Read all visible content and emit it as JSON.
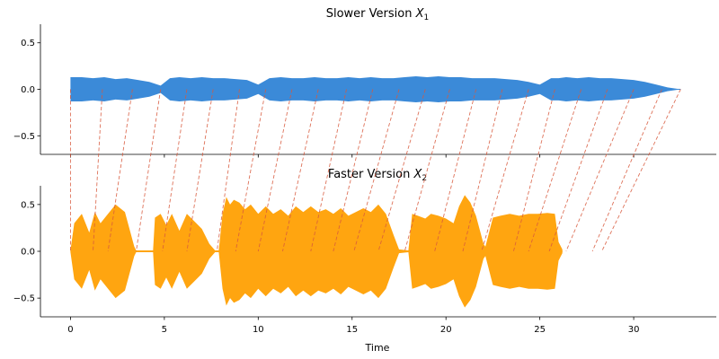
{
  "chart_data": [
    {
      "type": "line",
      "title_main": "Slower Version ",
      "title_sym": "X",
      "title_sub": "1",
      "xlabel": "",
      "ylabel": "",
      "xlim": [
        -1.6,
        34.4
      ],
      "ylim": [
        -0.7,
        0.7
      ],
      "yticks": [
        0.5,
        0.0,
        -0.5
      ],
      "ytick_labels": [
        "0.5",
        "0.0",
        "−0.5"
      ],
      "grid": false,
      "color": "#3b8ad8",
      "series": [
        {
          "x": [
            0.0,
            0.6,
            1.2,
            1.8,
            2.4,
            3.0,
            3.6,
            4.2,
            4.8,
            5.3,
            5.8,
            6.4,
            7.0,
            7.6,
            8.2,
            8.8,
            9.4,
            10.0,
            10.6,
            11.2,
            11.8,
            12.4,
            13.0,
            13.6,
            14.2,
            14.8,
            15.4,
            16.0,
            16.6,
            17.2,
            17.8,
            18.4,
            19.0,
            19.6,
            20.2,
            20.8,
            21.4,
            22.0,
            22.6,
            23.2,
            23.8,
            24.4,
            25.0,
            25.6,
            26.0,
            26.4,
            27.0,
            27.6,
            28.2,
            28.8,
            29.4,
            30.0,
            30.6,
            31.2,
            31.8,
            32.5
          ],
          "y": [
            0.13,
            0.13,
            0.12,
            0.13,
            0.11,
            0.12,
            0.1,
            0.08,
            0.04,
            0.12,
            0.13,
            0.12,
            0.13,
            0.12,
            0.12,
            0.11,
            0.1,
            0.05,
            0.12,
            0.13,
            0.12,
            0.12,
            0.13,
            0.12,
            0.12,
            0.13,
            0.12,
            0.13,
            0.12,
            0.12,
            0.13,
            0.14,
            0.13,
            0.14,
            0.13,
            0.13,
            0.12,
            0.12,
            0.12,
            0.11,
            0.1,
            0.08,
            0.05,
            0.12,
            0.12,
            0.13,
            0.12,
            0.13,
            0.12,
            0.12,
            0.11,
            0.1,
            0.08,
            0.05,
            0.02,
            0.0
          ]
        }
      ]
    },
    {
      "type": "line",
      "title_main": "Faster Version ",
      "title_sym": "X",
      "title_sub": "2",
      "xlabel": "Time",
      "ylabel": "",
      "xlim": [
        -1.6,
        34.4
      ],
      "ylim": [
        -0.7,
        0.7
      ],
      "xticks": [
        0,
        5,
        10,
        15,
        20,
        25,
        30
      ],
      "xtick_labels": [
        "0",
        "5",
        "10",
        "15",
        "20",
        "25",
        "30"
      ],
      "yticks": [
        0.5,
        0.0,
        -0.5
      ],
      "ytick_labels": [
        "0.5",
        "0.0",
        "−0.5"
      ],
      "grid": false,
      "color": "#ffa510",
      "series": [
        {
          "x": [
            0.0,
            0.2,
            0.6,
            1.0,
            1.3,
            1.6,
            2.0,
            2.4,
            2.9,
            3.4,
            3.5,
            4.4,
            4.5,
            4.8,
            5.1,
            5.4,
            5.8,
            6.2,
            6.6,
            7.0,
            7.4,
            7.7,
            7.9,
            8.1,
            8.3,
            8.5,
            8.7,
            9.0,
            9.3,
            9.6,
            10.0,
            10.4,
            10.8,
            11.2,
            11.6,
            12.0,
            12.4,
            12.8,
            13.2,
            13.6,
            14.0,
            14.4,
            14.8,
            15.2,
            15.6,
            16.0,
            16.4,
            16.8,
            17.2,
            17.5,
            18.0,
            18.2,
            18.5,
            18.9,
            19.2,
            19.6,
            20.0,
            20.4,
            20.7,
            21.0,
            21.3,
            21.6,
            22.0,
            22.1,
            22.5,
            22.9,
            23.4,
            23.9,
            24.4,
            24.9,
            25.4,
            25.8,
            26.0,
            26.2
          ],
          "y": [
            0.01,
            0.3,
            0.4,
            0.2,
            0.42,
            0.3,
            0.4,
            0.5,
            0.42,
            0.05,
            0.01,
            0.01,
            0.36,
            0.4,
            0.28,
            0.4,
            0.22,
            0.4,
            0.32,
            0.24,
            0.08,
            0.01,
            0.01,
            0.4,
            0.58,
            0.5,
            0.55,
            0.52,
            0.45,
            0.5,
            0.4,
            0.48,
            0.4,
            0.45,
            0.38,
            0.48,
            0.42,
            0.48,
            0.42,
            0.45,
            0.4,
            0.46,
            0.38,
            0.42,
            0.46,
            0.42,
            0.5,
            0.4,
            0.18,
            0.02,
            0.01,
            0.4,
            0.38,
            0.35,
            0.4,
            0.38,
            0.35,
            0.3,
            0.48,
            0.6,
            0.52,
            0.38,
            0.08,
            0.05,
            0.36,
            0.38,
            0.4,
            0.38,
            0.4,
            0.4,
            0.41,
            0.4,
            0.1,
            0.02
          ]
        }
      ]
    }
  ],
  "alignment": {
    "color": "#d8593c",
    "pairs": [
      [
        0.0,
        0.0
      ],
      [
        1.7,
        1.2
      ],
      [
        3.3,
        2.0
      ],
      [
        4.8,
        3.5
      ],
      [
        6.2,
        4.9
      ],
      [
        7.6,
        6.2
      ],
      [
        9.0,
        7.8
      ],
      [
        10.4,
        8.8
      ],
      [
        11.8,
        10.0
      ],
      [
        13.2,
        11.3
      ],
      [
        14.7,
        12.8
      ],
      [
        16.1,
        14.0
      ],
      [
        17.5,
        15.1
      ],
      [
        18.9,
        16.4
      ],
      [
        20.2,
        17.8
      ],
      [
        21.6,
        19.4
      ],
      [
        23.0,
        20.9
      ],
      [
        24.4,
        21.9
      ],
      [
        25.8,
        23.6
      ],
      [
        27.2,
        24.4
      ],
      [
        28.6,
        25.5
      ],
      [
        30.0,
        26.4
      ],
      [
        31.5,
        27.8
      ],
      [
        32.5,
        28.3
      ]
    ]
  }
}
